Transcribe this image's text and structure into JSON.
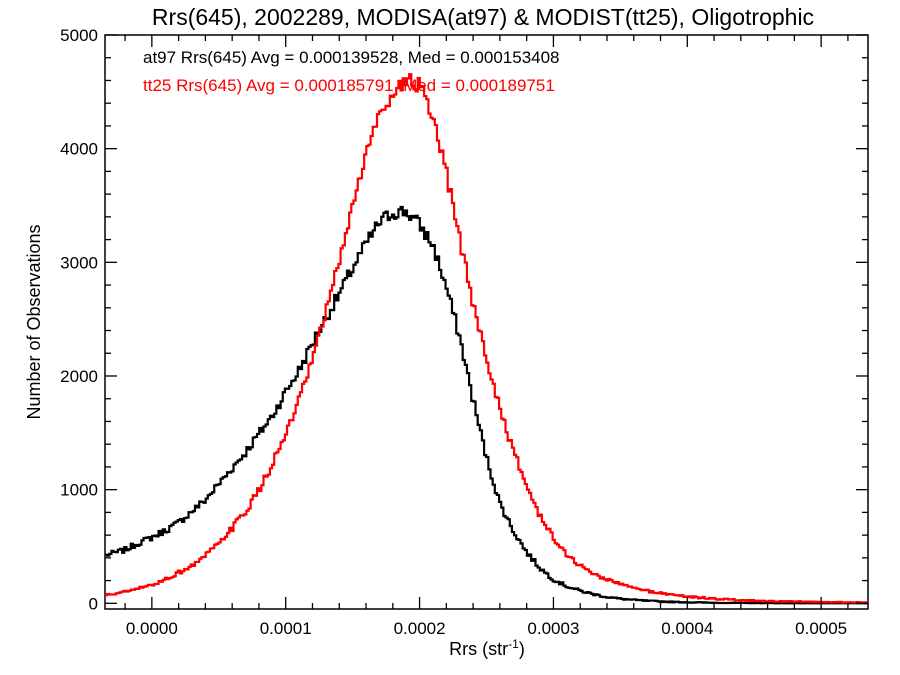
{
  "chart_data": {
    "type": "line",
    "title": "Rrs(645), 2002289, MODISA(at97) & MODIST(tt25), Oligotrophic",
    "xlabel_main": "Rrs (str",
    "xlabel_sup": "-1",
    "xlabel_close": ")",
    "ylabel": "Number of Observations",
    "xlim": [
      -3.5e-05,
      0.000535
    ],
    "ylim": [
      -50,
      5000
    ],
    "xticks": [
      0.0,
      0.0001,
      0.0002,
      0.0003,
      0.0004,
      0.0005
    ],
    "xtick_labels": [
      "0.0000",
      "0.0001",
      "0.0002",
      "0.0003",
      "0.0004",
      "0.0005"
    ],
    "yticks": [
      0,
      1000,
      2000,
      3000,
      4000,
      5000
    ],
    "ytick_labels": [
      "0",
      "1000",
      "2000",
      "3000",
      "4000",
      "5000"
    ],
    "annotations": [
      "at97 Rrs(645) Avg = 0.000139528, Med = 0.000153408",
      "tt25 Rrs(645) Avg = 0.000185791, Med = 0.000189751"
    ],
    "series": [
      {
        "color": "#000000",
        "x": [
          -3.5e-05,
          -2e-05,
          -1e-05,
          0.0,
          1e-05,
          2e-05,
          3e-05,
          4e-05,
          5e-05,
          6e-05,
          7e-05,
          8e-05,
          9e-05,
          0.0001,
          0.00011,
          0.00012,
          0.00013,
          0.00014,
          0.00015,
          0.00016,
          0.00017,
          0.00018,
          0.00019,
          0.0002,
          0.00021,
          0.00022,
          0.00023,
          0.00024,
          0.00025,
          0.00026,
          0.00027,
          0.00028,
          0.00029,
          0.0003,
          0.00031,
          0.00032,
          0.00033,
          0.00034,
          0.00035,
          0.00036,
          0.00037,
          0.00038,
          0.00039,
          0.0004,
          0.00041,
          0.00042,
          0.00043,
          0.00044,
          0.00045,
          0.00046,
          0.00047,
          0.00048,
          0.00049,
          0.0005,
          0.00051,
          0.00052,
          0.00053
        ],
        "y": [
          420,
          470,
          530,
          580,
          640,
          710,
          810,
          910,
          1050,
          1190,
          1330,
          1490,
          1650,
          1860,
          2050,
          2290,
          2510,
          2720,
          2950,
          3160,
          3350,
          3440,
          3450,
          3330,
          3150,
          2780,
          2340,
          1790,
          1280,
          880,
          640,
          450,
          310,
          210,
          150,
          110,
          80,
          55,
          40,
          30,
          22,
          16,
          12,
          9,
          7,
          5,
          4,
          3,
          2,
          2,
          1,
          1,
          1,
          0,
          0,
          0,
          0
        ]
      },
      {
        "color": "#ff0000",
        "x": [
          -3.5e-05,
          -2e-05,
          -1e-05,
          0.0,
          1e-05,
          2e-05,
          3e-05,
          4e-05,
          5e-05,
          6e-05,
          7e-05,
          8e-05,
          9e-05,
          0.0001,
          0.00011,
          0.00012,
          0.00013,
          0.00014,
          0.00015,
          0.00016,
          0.00017,
          0.00018,
          0.00019,
          0.0002,
          0.00021,
          0.00022,
          0.00023,
          0.00024,
          0.00025,
          0.00026,
          0.00027,
          0.00028,
          0.00029,
          0.0003,
          0.00031,
          0.00032,
          0.00033,
          0.00034,
          0.00035,
          0.00036,
          0.00037,
          0.00038,
          0.00039,
          0.0004,
          0.00041,
          0.00042,
          0.00043,
          0.00044,
          0.00045,
          0.00046,
          0.00047,
          0.00048,
          0.00049,
          0.0005,
          0.00051,
          0.00052,
          0.00053
        ],
        "y": [
          70,
          100,
          130,
          160,
          210,
          270,
          330,
          420,
          520,
          660,
          810,
          990,
          1230,
          1480,
          1780,
          2140,
          2560,
          3010,
          3500,
          3950,
          4300,
          4500,
          4600,
          4560,
          4250,
          3780,
          3200,
          2640,
          2150,
          1720,
          1340,
          1030,
          770,
          570,
          430,
          330,
          260,
          210,
          170,
          135,
          110,
          90,
          75,
          60,
          50,
          40,
          35,
          28,
          24,
          20,
          17,
          15,
          13,
          11,
          10,
          9,
          8
        ]
      }
    ]
  }
}
